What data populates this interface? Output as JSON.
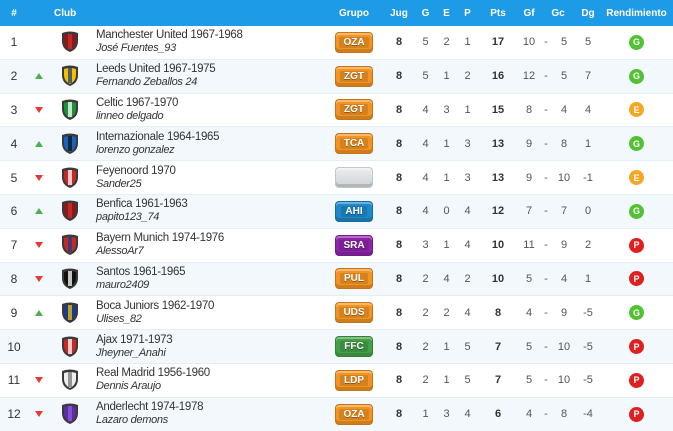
{
  "header": {
    "pos": "#",
    "club": "Club",
    "grupo": "Grupo",
    "jug": "Jug",
    "g": "G",
    "e": "E",
    "p": "P",
    "pts": "Pts",
    "gf": "Gf",
    "gc": "Gc",
    "dg": "Dg",
    "rendimiento": "Rendimiento"
  },
  "colors": {
    "header_bg": "#1e9be6",
    "up": "#4caf50",
    "down": "#e53935",
    "rend_G": "#52c234",
    "rend_E": "#f5a623",
    "rend_P": "#e02020"
  },
  "rows": [
    {
      "pos": "1",
      "trend": "none",
      "shield": "red-shield-icon",
      "shield_colors": [
        "#8b1a1a",
        "#d32f2f"
      ],
      "club": "Manchester United 1967-1968",
      "manager": "José Fuentes_93",
      "group": "OZA",
      "group_color": "#f39322",
      "jug": "8",
      "g": "5",
      "e": "2",
      "p": "1",
      "pts": "17",
      "gf": "10",
      "gc": "5",
      "dg": "5",
      "rend": "G"
    },
    {
      "pos": "2",
      "trend": "up",
      "shield": "yellow-blue-shield-icon",
      "shield_colors": [
        "#f2c200",
        "#1a3c8c"
      ],
      "club": "Leeds United 1967-1975",
      "manager": "Fernando Zeballos 24",
      "group": "ZGT",
      "group_color": "#f39322",
      "jug": "8",
      "g": "5",
      "e": "1",
      "p": "2",
      "pts": "16",
      "gf": "12",
      "gc": "5",
      "dg": "7",
      "rend": "G"
    },
    {
      "pos": "3",
      "trend": "down",
      "shield": "green-hoops-shield-icon",
      "shield_colors": [
        "#1f8f3a",
        "#ffffff"
      ],
      "club": "Celtic 1967-1970",
      "manager": "linneo delgado",
      "group": "ZGT",
      "group_color": "#f39322",
      "jug": "8",
      "g": "4",
      "e": "3",
      "p": "1",
      "pts": "15",
      "gf": "8",
      "gc": "4",
      "dg": "4",
      "rend": "E"
    },
    {
      "pos": "4",
      "trend": "up",
      "shield": "blue-black-shield-icon",
      "shield_colors": [
        "#1565c0",
        "#111111"
      ],
      "club": "Internazionale 1964-1965",
      "manager": "lorenzo gonzalez",
      "group": "TCA",
      "group_color": "#f39322",
      "jug": "8",
      "g": "4",
      "e": "1",
      "p": "3",
      "pts": "13",
      "gf": "9",
      "gc": "8",
      "dg": "1",
      "rend": "G"
    },
    {
      "pos": "5",
      "trend": "down",
      "shield": "red-white-shield-icon",
      "shield_colors": [
        "#c62828",
        "#ffffff"
      ],
      "club": "Feyenoord 1970",
      "manager": "Sander25",
      "group": "",
      "group_color": "#d9dcde",
      "jug": "8",
      "g": "4",
      "e": "1",
      "p": "3",
      "pts": "13",
      "gf": "9",
      "gc": "10",
      "dg": "-1",
      "rend": "E"
    },
    {
      "pos": "6",
      "trend": "up",
      "shield": "red-shield-icon",
      "shield_colors": [
        "#8b1a1a",
        "#d32f2f"
      ],
      "club": "Benfica 1961-1963",
      "manager": "papito123_74",
      "group": "AHI",
      "group_color": "#1e88c8",
      "jug": "8",
      "g": "4",
      "e": "0",
      "p": "4",
      "pts": "12",
      "gf": "7",
      "gc": "7",
      "dg": "0",
      "rend": "G"
    },
    {
      "pos": "7",
      "trend": "down",
      "shield": "red-blue-shield-icon",
      "shield_colors": [
        "#c62828",
        "#1a3c8c"
      ],
      "club": "Bayern Munich 1974-1976",
      "manager": "AlessoAr7",
      "group": "SRA",
      "group_color": "#8e24aa",
      "jug": "8",
      "g": "3",
      "e": "1",
      "p": "4",
      "pts": "10",
      "gf": "11",
      "gc": "9",
      "dg": "2",
      "rend": "P"
    },
    {
      "pos": "8",
      "trend": "down",
      "shield": "black-white-shield-icon",
      "shield_colors": [
        "#111111",
        "#ffffff"
      ],
      "club": "Santos 1961-1965",
      "manager": "mauro2409",
      "group": "PUL",
      "group_color": "#f39322",
      "jug": "8",
      "g": "2",
      "e": "4",
      "p": "2",
      "pts": "10",
      "gf": "5",
      "gc": "4",
      "dg": "1",
      "rend": "P"
    },
    {
      "pos": "9",
      "trend": "up",
      "shield": "blue-yellow-shield-icon",
      "shield_colors": [
        "#1a3c8c",
        "#f2c200"
      ],
      "club": "Boca Juniors 1962-1970",
      "manager": "Ulises_82",
      "group": "UDS",
      "group_color": "#f39322",
      "jug": "8",
      "g": "2",
      "e": "2",
      "p": "4",
      "pts": "8",
      "gf": "4",
      "gc": "9",
      "dg": "-5",
      "rend": "G"
    },
    {
      "pos": "10",
      "trend": "none",
      "shield": "red-white-shield-icon",
      "shield_colors": [
        "#c62828",
        "#ffffff"
      ],
      "club": "Ajax 1971-1973",
      "manager": "Jheyner_Anahi",
      "group": "FFC",
      "group_color": "#43a047",
      "jug": "8",
      "g": "2",
      "e": "1",
      "p": "5",
      "pts": "7",
      "gf": "5",
      "gc": "10",
      "dg": "-5",
      "rend": "P"
    },
    {
      "pos": "11",
      "trend": "down",
      "shield": "white-shield-icon",
      "shield_colors": [
        "#eeeeee",
        "#777777"
      ],
      "club": "Real Madrid 1956-1960",
      "manager": "Dennis Araujo",
      "group": "LDP",
      "group_color": "#f39322",
      "jug": "8",
      "g": "2",
      "e": "1",
      "p": "5",
      "pts": "7",
      "gf": "5",
      "gc": "10",
      "dg": "-5",
      "rend": "P"
    },
    {
      "pos": "12",
      "trend": "down",
      "shield": "purple-shield-icon",
      "shield_colors": [
        "#5e2ca5",
        "#8e5cd9"
      ],
      "club": "Anderlecht 1974-1978",
      "manager": "Lazaro demons",
      "group": "OZA",
      "group_color": "#f39322",
      "jug": "8",
      "g": "1",
      "e": "3",
      "p": "4",
      "pts": "6",
      "gf": "4",
      "gc": "8",
      "dg": "-4",
      "rend": "P"
    }
  ]
}
